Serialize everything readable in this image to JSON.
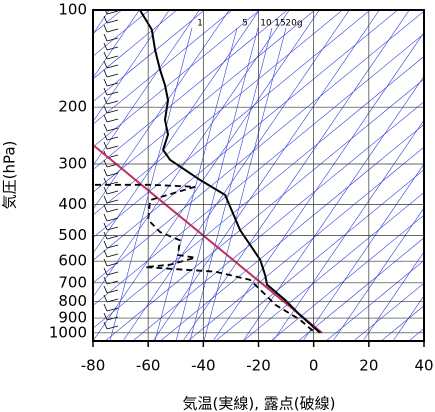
{
  "chart_data": {
    "type": "line",
    "x_label": "気温(実線), 露点(破線)",
    "y_label": "気圧(hPa)",
    "xlim": [
      -80,
      40
    ],
    "xticks": [
      -80,
      -60,
      -40,
      -20,
      0,
      20,
      40
    ],
    "ylim": [
      1060,
      100
    ],
    "yticks": [
      100,
      200,
      300,
      400,
      500,
      600,
      700,
      800,
      900,
      1000
    ],
    "log_y": true,
    "grid": true,
    "mixing_ratio_labels": [
      "1",
      "5",
      "10",
      "15",
      "20g"
    ],
    "series": [
      {
        "color": "#c03060",
        "dash": false,
        "x": [
          -80,
          3
        ],
        "y": [
          262,
          1000
        ]
      },
      {
        "color": "#000000",
        "dash": false,
        "x": [
          -63,
          -58.7,
          -57.5,
          -55.7,
          -53.9,
          -52.8,
          -53.9,
          -52.8,
          -54.6,
          -52.1,
          -41.2,
          -32.1,
          -26.7,
          -19.4,
          -17.6,
          -16.9,
          -10.4,
          -5,
          2.3
        ],
        "y": [
          100,
          115,
          133,
          153,
          171,
          190,
          219,
          243,
          271,
          291,
          336,
          374,
          480,
          594,
          662,
          710,
          790,
          880,
          1000
        ]
      },
      {
        "color": "#000000",
        "dash": true,
        "x": [
          -79.3,
          -59.3,
          -43,
          -59.3,
          -60,
          -55.7,
          -48.5,
          -49.2,
          -43,
          -52.1,
          -61.1,
          -35.8,
          -23.1,
          -17.6,
          -14,
          -5,
          0.5
        ],
        "y": [
          348,
          348,
          353,
          388,
          447,
          487,
          517,
          574,
          585,
          615,
          626,
          646,
          685,
          760,
          818,
          910,
          1000
        ]
      }
    ]
  }
}
